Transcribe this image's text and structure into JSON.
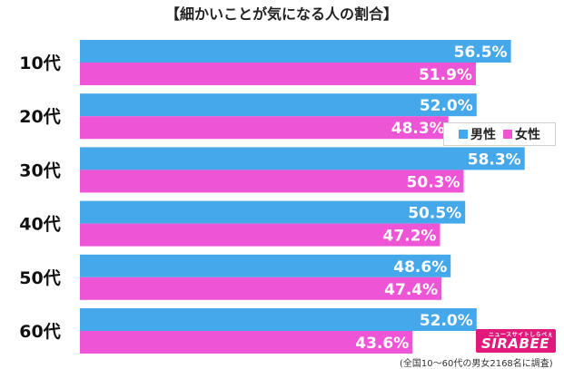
{
  "chart_data": {
    "type": "bar",
    "orientation": "horizontal",
    "title": "【細かいことが気になる人の割合】",
    "categories": [
      "10代",
      "20代",
      "30代",
      "40代",
      "50代",
      "60代"
    ],
    "series": [
      {
        "name": "男性",
        "color": "#45a8ea",
        "values": [
          56.5,
          52.0,
          58.3,
          50.5,
          48.6,
          52.0
        ]
      },
      {
        "name": "女性",
        "color": "#ee55d6",
        "values": [
          51.9,
          48.3,
          50.3,
          47.2,
          47.4,
          43.6
        ]
      }
    ],
    "value_labels": [
      [
        "56.5%",
        "52.0%",
        "58.3%",
        "50.5%",
        "48.6%",
        "52.0%"
      ],
      [
        "51.9%",
        "48.3%",
        "50.3%",
        "47.2%",
        "47.4%",
        "43.6%"
      ]
    ],
    "xlim": [
      0,
      100
    ],
    "legend_position": "right"
  },
  "logo": {
    "small_text": "ニュースサイトしらべぇ",
    "main_text": "SIRABEE"
  },
  "note": "(全国10〜60代の男女2168名に調査)"
}
